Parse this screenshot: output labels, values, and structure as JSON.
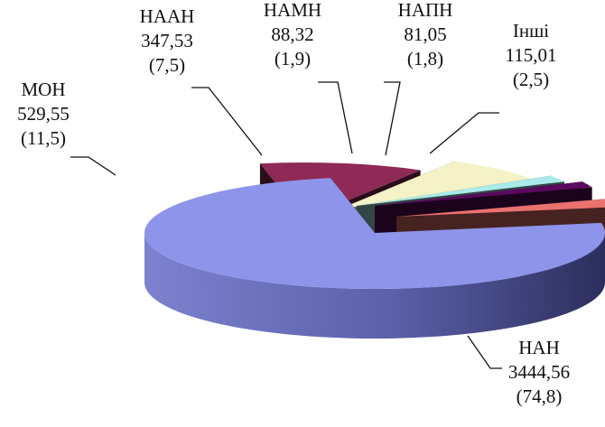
{
  "chart_data": {
    "type": "pie",
    "style": "3d-exploded",
    "slices": [
      {
        "label": "НАН",
        "value": 3444.56,
        "value_text": "3444,56",
        "percent": 74.8,
        "percent_text": "(74,8)",
        "color": "#8E94EA",
        "label_position": "bottom-right"
      },
      {
        "label": "МОН",
        "value": 529.55,
        "value_text": "529,55",
        "percent": 11.5,
        "percent_text": "(11,5)",
        "color": "#8E2A55",
        "label_position": "left"
      },
      {
        "label": "НААН",
        "value": 347.53,
        "value_text": "347,53",
        "percent": 7.5,
        "percent_text": "(7,5)",
        "color": "#F4F2C6",
        "label_position": "top-left"
      },
      {
        "label": "НАМН",
        "value": 88.32,
        "value_text": "88,32",
        "percent": 1.9,
        "percent_text": "(1,9)",
        "color": "#A9EAEA",
        "label_position": "top"
      },
      {
        "label": "НАПН",
        "value": 81.05,
        "value_text": "81,05",
        "percent": 1.8,
        "percent_text": "(1,8)",
        "color": "#5A0A5E",
        "label_position": "top"
      },
      {
        "label": "Інші",
        "value": 115.01,
        "value_text": "115,01",
        "percent": 2.5,
        "percent_text": "(2,5)",
        "color": "#E9716E",
        "label_position": "top-right"
      }
    ]
  }
}
